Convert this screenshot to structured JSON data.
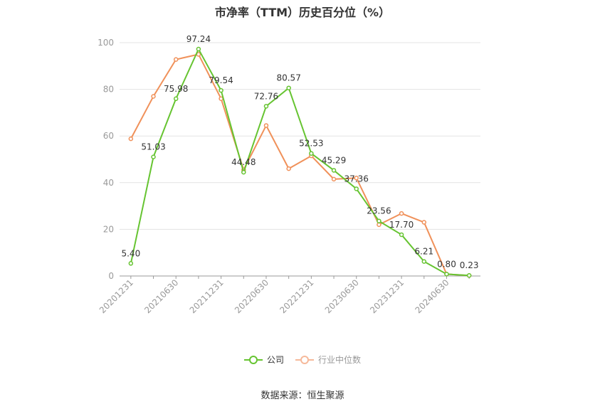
{
  "chart_data": {
    "type": "line",
    "title": "市净率（TTM）历史百分位（%）",
    "x": [
      "20201231",
      "20210331",
      "20210630",
      "20210930",
      "20211231",
      "20220331",
      "20220630",
      "20220930",
      "20221231",
      "20230331",
      "20230630",
      "20230930",
      "20231231",
      "20240331",
      "20240630",
      "20240930"
    ],
    "x_tick_labels": [
      "20201231",
      "20210630",
      "20211231",
      "20220630",
      "20221231",
      "20230630",
      "20231231",
      "20240630"
    ],
    "ylim": [
      0,
      100
    ],
    "y_ticks": [
      0,
      20,
      40,
      60,
      80,
      100
    ],
    "grid": true,
    "legend_position": "bottom",
    "series": [
      {
        "name": "公司",
        "color": "#66c431",
        "values": [
          5.4,
          51.03,
          75.98,
          97.24,
          79.54,
          44.48,
          72.76,
          80.57,
          52.53,
          45.29,
          37.36,
          23.56,
          17.7,
          6.21,
          0.8,
          0.23
        ],
        "labels": [
          "5.40",
          "51.03",
          "75.98",
          "97.24",
          "79.54",
          "44.48",
          "72.76",
          "80.57",
          "52.53",
          "45.29",
          "37.36",
          "23.56",
          "17.70",
          "6.21",
          "0.80",
          "0.23"
        ]
      },
      {
        "name": "行业中位数",
        "color": "#f0915a",
        "values": [
          58.8,
          77.0,
          92.8,
          95.0,
          76.0,
          45.5,
          64.5,
          46.0,
          51.5,
          41.5,
          42.0,
          22.0,
          26.8,
          23.0,
          0.8,
          0.2
        ]
      }
    ]
  },
  "footer": {
    "source": "数据来源：恒生聚源"
  }
}
